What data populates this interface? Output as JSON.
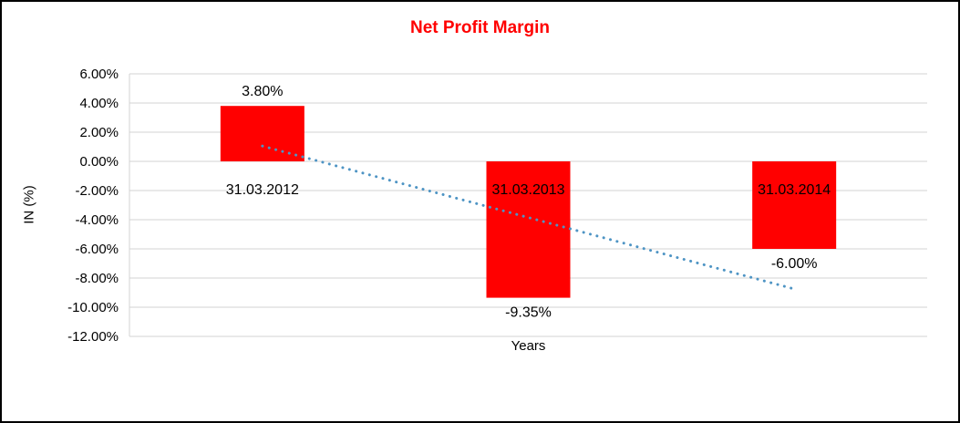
{
  "chart_data": {
    "type": "bar",
    "title": "Net Profit Margin",
    "xlabel": "Years",
    "ylabel": "IN (%)",
    "categories": [
      "31.03.2012",
      "31.03.2013",
      "31.03.2014"
    ],
    "values": [
      3.8,
      -9.35,
      -6.0
    ],
    "value_labels": [
      "3.80%",
      "-9.35%",
      "-6.00%"
    ],
    "ylim": [
      -12,
      6
    ],
    "ytick_step": 2,
    "ytick_labels": [
      "6.00%",
      "4.00%",
      "2.00%",
      "0.00%",
      "-2.00%",
      "-4.00%",
      "-6.00%",
      "-8.00%",
      "-10.00%",
      "-12.00%"
    ],
    "grid": true,
    "legend": "none",
    "trendline": {
      "style": "dotted",
      "color": "#4e94c4",
      "start_value": 1.05,
      "end_value": -8.75
    },
    "colors": {
      "bar": "#ff0000",
      "title": "#ff0000",
      "gridline": "#d3d3d3",
      "text": "#000000"
    }
  }
}
